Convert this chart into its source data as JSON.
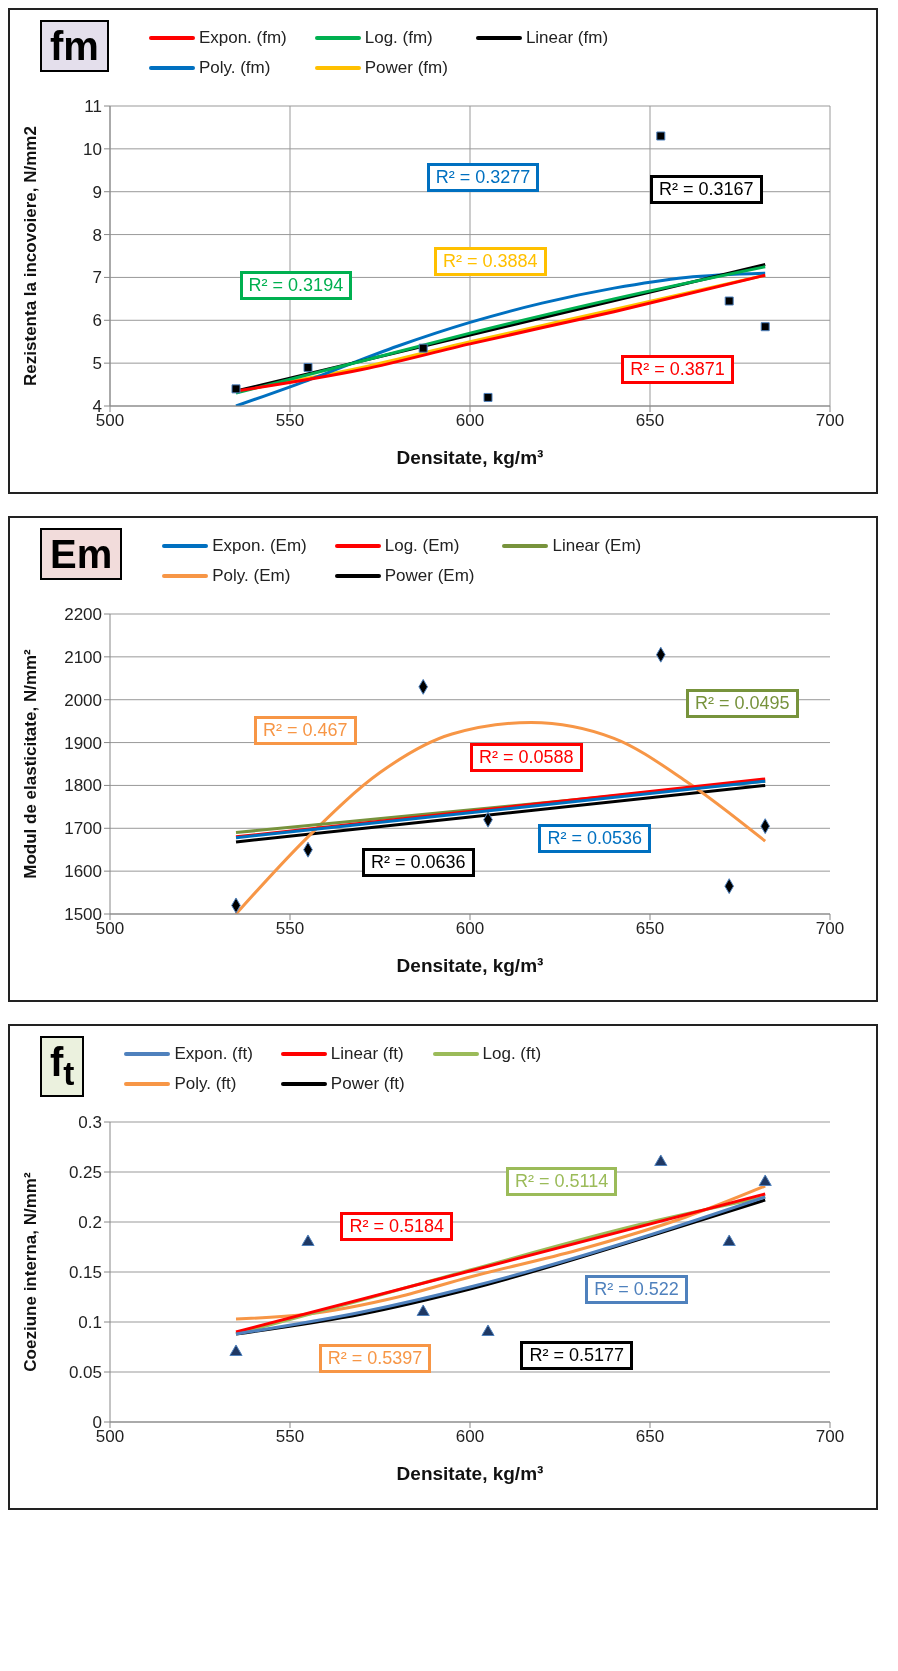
{
  "chart_data": [
    {
      "type": "scatter",
      "title": "fm",
      "xlabel": "Densitate, kg/m³",
      "ylabel": "Rezistenta la incovoiere, N/mm2",
      "xlim": [
        500,
        700
      ],
      "xticks": [
        500,
        550,
        600,
        650,
        700
      ],
      "ylim": [
        4,
        11
      ],
      "yticks": [
        4,
        5,
        6,
        7,
        8,
        9,
        10,
        11
      ],
      "grid": true,
      "legend": "top",
      "series": [
        {
          "type": "scatter",
          "color": "#000000",
          "marker": "square",
          "x": [
            535,
            555,
            587,
            605,
            653,
            672,
            682
          ],
          "values": [
            4.4,
            4.9,
            5.35,
            4.2,
            10.3,
            6.45,
            5.85
          ]
        },
        {
          "type": "line",
          "name": "Expon. (fm)",
          "color": "#ff0000",
          "x": [
            535,
            570,
            600,
            640,
            682
          ],
          "values": [
            4.35,
            4.85,
            5.45,
            6.2,
            7.05
          ]
        },
        {
          "type": "line",
          "name": "Log. (fm)",
          "color": "#00b050",
          "x": [
            535,
            570,
            600,
            640,
            682
          ],
          "values": [
            4.3,
            5.05,
            5.7,
            6.5,
            7.25
          ]
        },
        {
          "type": "line",
          "name": "Linear (fm)",
          "color": "#000000",
          "x": [
            535,
            682
          ],
          "values": [
            4.35,
            7.3
          ]
        },
        {
          "type": "line",
          "name": "Poly. (fm)",
          "color": "#0070c0",
          "x": [
            535,
            555,
            580,
            600,
            620,
            640,
            660,
            682
          ],
          "values": [
            4.0,
            4.6,
            5.4,
            5.95,
            6.4,
            6.75,
            7.0,
            7.1
          ]
        },
        {
          "type": "line",
          "name": "Power (fm)",
          "color": "#ffc000",
          "x": [
            535,
            570,
            600,
            640,
            682
          ],
          "values": [
            4.35,
            4.9,
            5.5,
            6.25,
            7.05
          ]
        }
      ],
      "annotations": [
        "R² = 0.3871",
        "R² = 0.3194",
        "R² = 0.3167",
        "R² = 0.3277",
        "R² = 0.3884"
      ]
    },
    {
      "type": "scatter",
      "title": "Em",
      "xlabel": "Densitate, kg/m³",
      "ylabel": "Modul de elasticitate, N/mm²",
      "xlim": [
        500,
        700
      ],
      "xticks": [
        500,
        550,
        600,
        650,
        700
      ],
      "ylim": [
        1500,
        2200
      ],
      "yticks": [
        1500,
        1600,
        1700,
        1800,
        1900,
        2000,
        2100,
        2200
      ],
      "grid": "y",
      "legend": "top",
      "series": [
        {
          "type": "scatter",
          "color": "#000000",
          "marker": "diamond",
          "x": [
            535,
            555,
            587,
            605,
            653,
            672,
            682
          ],
          "values": [
            1520,
            1650,
            2030,
            1720,
            2105,
            1565,
            1705
          ]
        },
        {
          "type": "line",
          "name": "Expon. (Em)",
          "color": "#0070c0",
          "x": [
            535,
            682
          ],
          "values": [
            1678,
            1810
          ]
        },
        {
          "type": "line",
          "name": "Log. (Em)",
          "color": "#ff0000",
          "x": [
            535,
            682
          ],
          "values": [
            1680,
            1815
          ]
        },
        {
          "type": "line",
          "name": "Linear (Em)",
          "color": "#77933c",
          "x": [
            535,
            682
          ],
          "values": [
            1690,
            1810
          ]
        },
        {
          "type": "line",
          "name": "Poly. (Em)",
          "color": "#f79646",
          "x": [
            535,
            555,
            575,
            595,
            617,
            640,
            660,
            682
          ],
          "values": [
            1500,
            1680,
            1830,
            1920,
            1947,
            1910,
            1810,
            1670
          ]
        },
        {
          "type": "line",
          "name": "Power (Em)",
          "color": "#000000",
          "x": [
            535,
            682
          ],
          "values": [
            1668,
            1800
          ]
        }
      ],
      "annotations": [
        "R² = 0.0536",
        "R² = 0.0588",
        "R² = 0.0495",
        "R² = 0.467",
        "R² = 0.0636"
      ]
    },
    {
      "type": "scatter",
      "title": "f$_{t}$",
      "xlabel": "Densitate, kg/m³",
      "ylabel": "Coeziune interna, N/mm²",
      "xlim": [
        500,
        700
      ],
      "xticks": [
        500,
        550,
        600,
        650,
        700
      ],
      "ylim": [
        0,
        0.3
      ],
      "yticks": [
        0,
        0.05,
        0.1,
        0.15,
        0.2,
        0.25,
        0.3
      ],
      "grid": "y",
      "legend": "top",
      "series": [
        {
          "type": "scatter",
          "color": "#1f3864",
          "marker": "triangle",
          "x": [
            535,
            555,
            587,
            605,
            653,
            672,
            682
          ],
          "values": [
            0.07,
            0.18,
            0.11,
            0.09,
            0.26,
            0.18,
            0.24
          ]
        },
        {
          "type": "line",
          "name": "Expon. (ft)",
          "color": "#4f81bd",
          "x": [
            535,
            570,
            600,
            650,
            682
          ],
          "values": [
            0.088,
            0.11,
            0.135,
            0.187,
            0.225
          ]
        },
        {
          "type": "line",
          "name": "Linear (ft)",
          "color": "#ff0000",
          "x": [
            535,
            682
          ],
          "values": [
            0.09,
            0.228
          ]
        },
        {
          "type": "line",
          "name": "Log. (ft)",
          "color": "#9bbb59",
          "x": [
            535,
            570,
            600,
            650,
            682
          ],
          "values": [
            0.088,
            0.122,
            0.152,
            0.2,
            0.225
          ]
        },
        {
          "type": "line",
          "name": "Poly. (ft)",
          "color": "#f79646",
          "x": [
            535,
            555,
            580,
            600,
            630,
            660,
            682
          ],
          "values": [
            0.103,
            0.108,
            0.125,
            0.145,
            0.172,
            0.205,
            0.236
          ]
        },
        {
          "type": "line",
          "name": "Power (ft)",
          "color": "#000000",
          "x": [
            535,
            570,
            600,
            650,
            682
          ],
          "values": [
            0.088,
            0.108,
            0.133,
            0.186,
            0.222
          ]
        }
      ],
      "annotations": [
        "R² = 0.522",
        "R² = 0.5184",
        "R² = 0.5114",
        "R² = 0.5397",
        "R² = 0.5177"
      ]
    }
  ]
}
